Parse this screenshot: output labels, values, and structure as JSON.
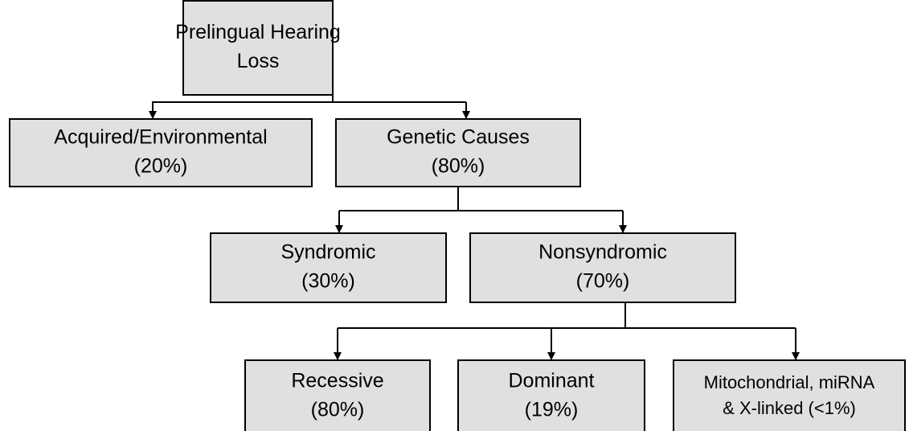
{
  "nodes": [
    {
      "lines": [
        "Prelingual Hearing",
        "Loss"
      ]
    },
    {
      "lines": [
        "Acquired/Environmental",
        "(20%)"
      ]
    },
    {
      "lines": [
        "Genetic Causes",
        "(80%)"
      ]
    },
    {
      "lines": [
        "Syndromic",
        "(30%)"
      ]
    },
    {
      "lines": [
        "Nonsyndromic",
        "(70%)"
      ]
    },
    {
      "lines": [
        "Recessive",
        "(80%)"
      ]
    },
    {
      "lines": [
        "Dominant",
        "(19%)"
      ]
    },
    {
      "lines": [
        "Mitochondrial, miRNA",
        "& X-linked (<1%)"
      ]
    }
  ]
}
